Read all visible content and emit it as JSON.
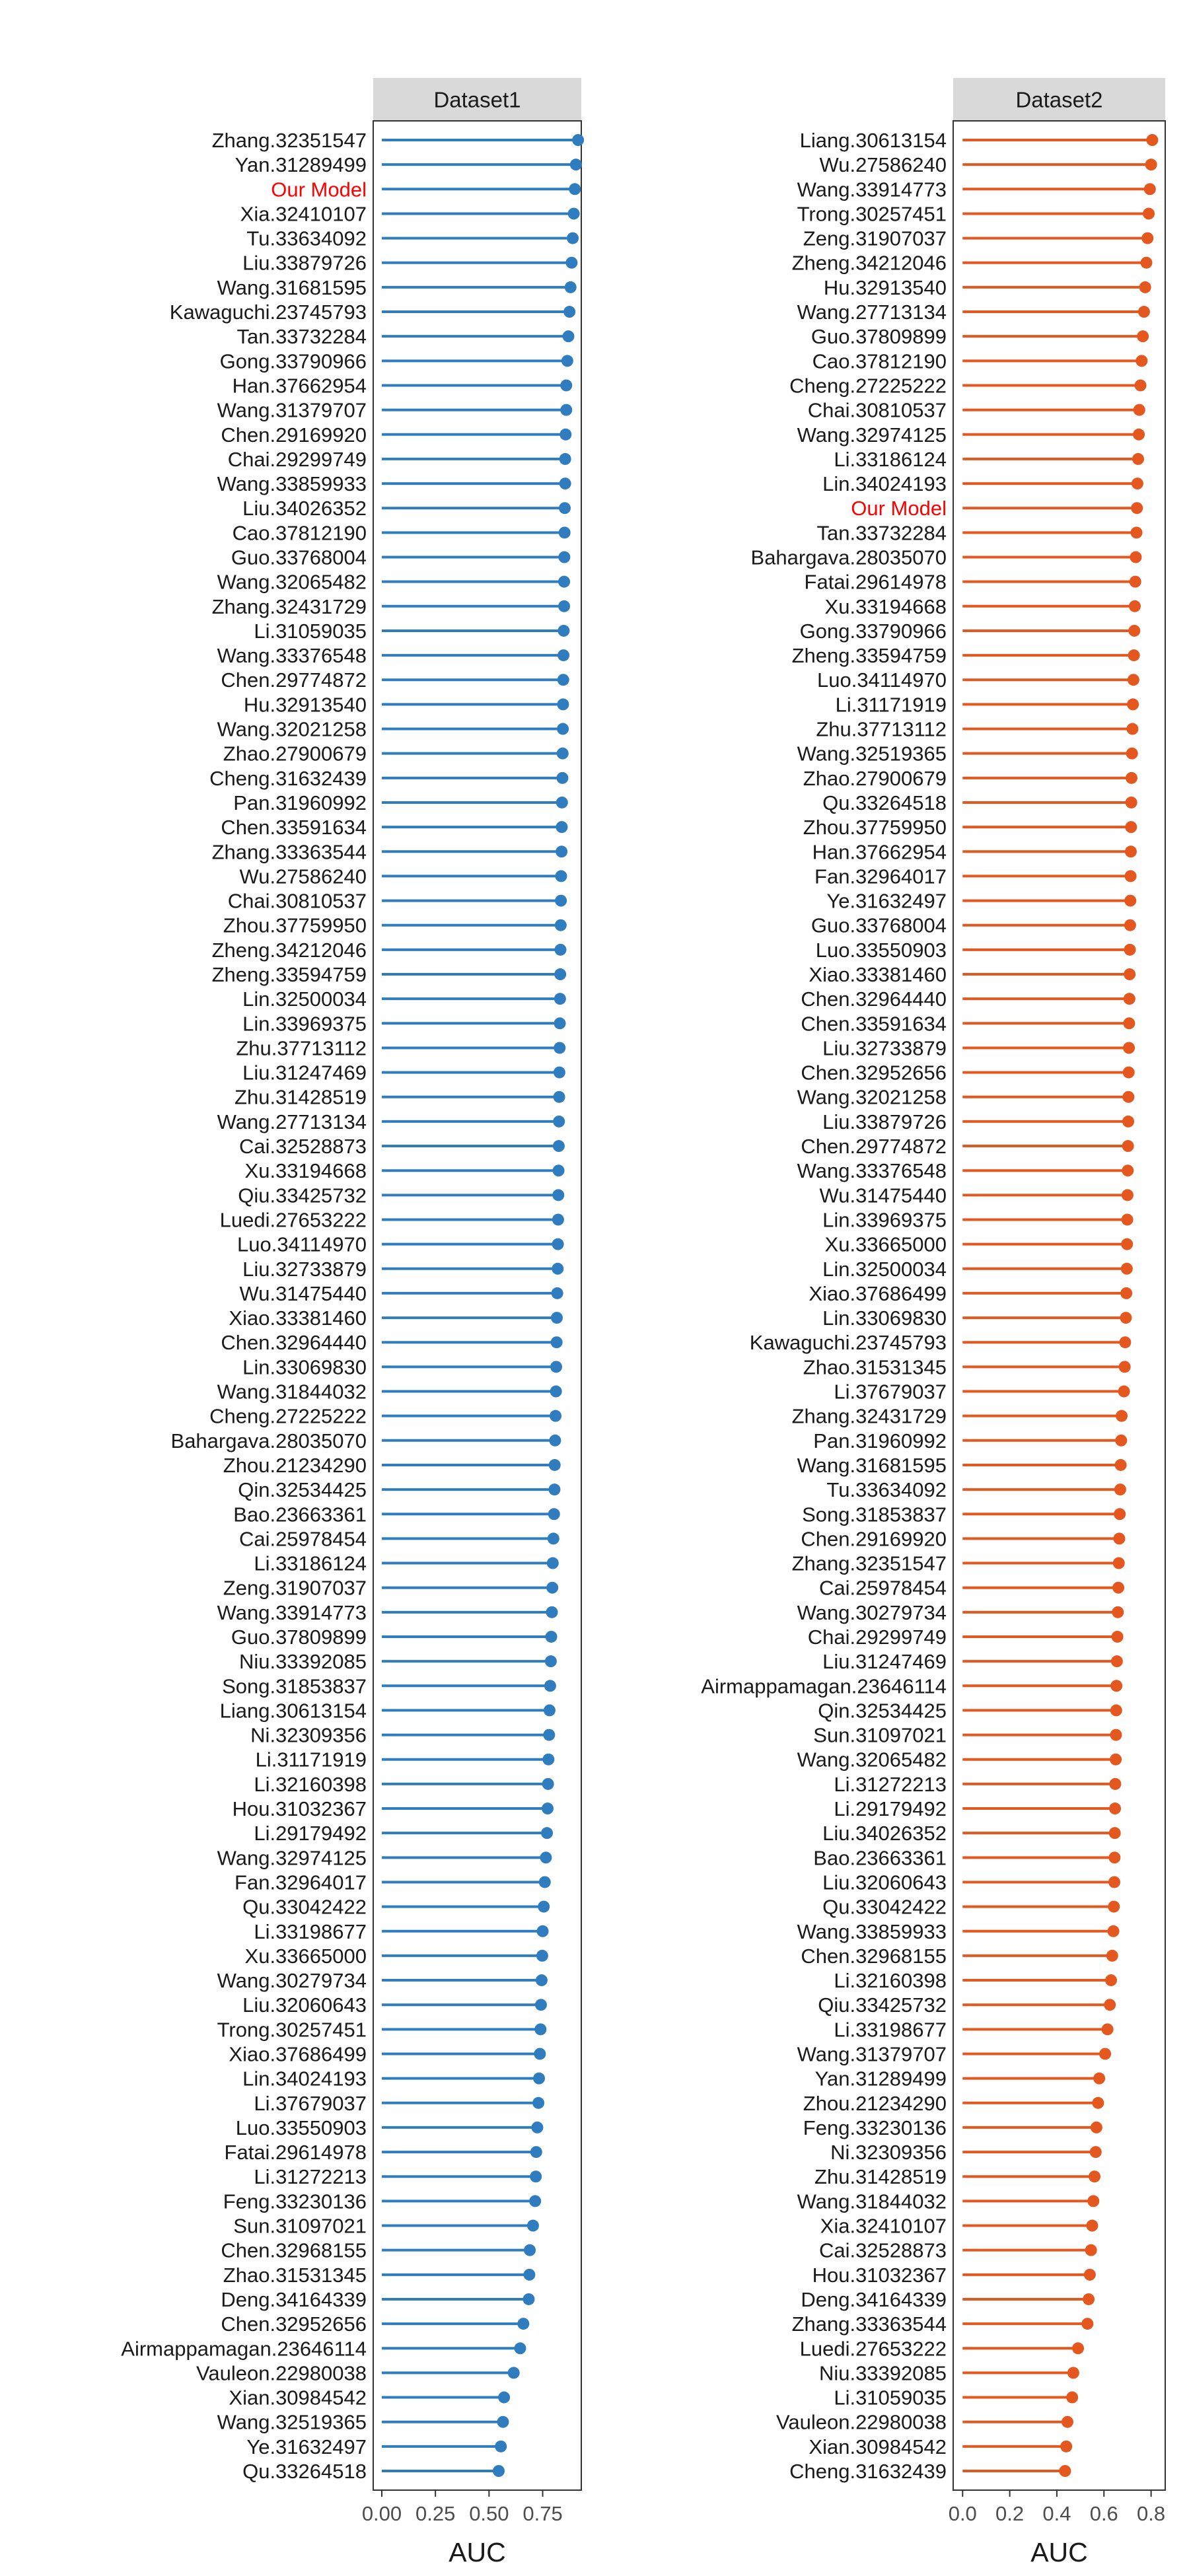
{
  "chart_data": [
    {
      "type": "lollipop",
      "panel_title": "Dataset1",
      "xlabel": "AUC",
      "xlim": [
        -0.04,
        0.93
      ],
      "xticks": [
        0.0,
        0.25,
        0.5,
        0.75
      ],
      "xtick_labels": [
        "0.00",
        "0.25",
        "0.50",
        "0.75"
      ],
      "color": "#2F7DBF",
      "highlight_color": "#FF0000",
      "highlight_label": "Our Model",
      "items": [
        {
          "label": "Zhang.32351547",
          "value": 0.915
        },
        {
          "label": "Yan.31289499",
          "value": 0.905
        },
        {
          "label": "Our Model",
          "value": 0.9
        },
        {
          "label": "Xia.32410107",
          "value": 0.895
        },
        {
          "label": "Tu.33634092",
          "value": 0.89
        },
        {
          "label": "Liu.33879726",
          "value": 0.885
        },
        {
          "label": "Wang.31681595",
          "value": 0.88
        },
        {
          "label": "Kawaguchi.23745793",
          "value": 0.875
        },
        {
          "label": "Tan.33732284",
          "value": 0.87
        },
        {
          "label": "Gong.33790966",
          "value": 0.865
        },
        {
          "label": "Han.37662954",
          "value": 0.86
        },
        {
          "label": "Wang.31379707",
          "value": 0.86
        },
        {
          "label": "Chen.29169920",
          "value": 0.857
        },
        {
          "label": "Chai.29299749",
          "value": 0.855
        },
        {
          "label": "Wang.33859933",
          "value": 0.855
        },
        {
          "label": "Liu.34026352",
          "value": 0.853
        },
        {
          "label": "Cao.37812190",
          "value": 0.852
        },
        {
          "label": "Guo.33768004",
          "value": 0.851
        },
        {
          "label": "Wang.32065482",
          "value": 0.85
        },
        {
          "label": "Zhang.32431729",
          "value": 0.85
        },
        {
          "label": "Li.31059035",
          "value": 0.848
        },
        {
          "label": "Wang.33376548",
          "value": 0.847
        },
        {
          "label": "Chen.29774872",
          "value": 0.846
        },
        {
          "label": "Hu.32913540",
          "value": 0.845
        },
        {
          "label": "Wang.32021258",
          "value": 0.844
        },
        {
          "label": "Zhao.27900679",
          "value": 0.843
        },
        {
          "label": "Cheng.31632439",
          "value": 0.842
        },
        {
          "label": "Pan.31960992",
          "value": 0.84
        },
        {
          "label": "Chen.33591634",
          "value": 0.839
        },
        {
          "label": "Zhang.33363544",
          "value": 0.838
        },
        {
          "label": "Wu.27586240",
          "value": 0.836
        },
        {
          "label": "Chai.30810537",
          "value": 0.835
        },
        {
          "label": "Zhou.37759950",
          "value": 0.834
        },
        {
          "label": "Zheng.34212046",
          "value": 0.833
        },
        {
          "label": "Zheng.33594759",
          "value": 0.832
        },
        {
          "label": "Lin.32500034",
          "value": 0.831
        },
        {
          "label": "Lin.33969375",
          "value": 0.83
        },
        {
          "label": "Zhu.37713112",
          "value": 0.829
        },
        {
          "label": "Liu.31247469",
          "value": 0.828
        },
        {
          "label": "Zhu.31428519",
          "value": 0.827
        },
        {
          "label": "Wang.27713134",
          "value": 0.826
        },
        {
          "label": "Cai.32528873",
          "value": 0.825
        },
        {
          "label": "Xu.33194668",
          "value": 0.824
        },
        {
          "label": "Qiu.33425732",
          "value": 0.823
        },
        {
          "label": "Luedi.27653222",
          "value": 0.822
        },
        {
          "label": "Luo.34114970",
          "value": 0.821
        },
        {
          "label": "Liu.32733879",
          "value": 0.82
        },
        {
          "label": "Wu.31475440",
          "value": 0.818
        },
        {
          "label": "Xiao.33381460",
          "value": 0.816
        },
        {
          "label": "Chen.32964440",
          "value": 0.815
        },
        {
          "label": "Lin.33069830",
          "value": 0.813
        },
        {
          "label": "Wang.31844032",
          "value": 0.812
        },
        {
          "label": "Cheng.27225222",
          "value": 0.81
        },
        {
          "label": "Bahargava.28035070",
          "value": 0.808
        },
        {
          "label": "Zhou.21234290",
          "value": 0.806
        },
        {
          "label": "Qin.32534425",
          "value": 0.805
        },
        {
          "label": "Bao.23663361",
          "value": 0.803
        },
        {
          "label": "Cai.25978454",
          "value": 0.8
        },
        {
          "label": "Li.33186124",
          "value": 0.797
        },
        {
          "label": "Zeng.31907037",
          "value": 0.795
        },
        {
          "label": "Wang.33914773",
          "value": 0.793
        },
        {
          "label": "Guo.37809899",
          "value": 0.79
        },
        {
          "label": "Niu.33392085",
          "value": 0.788
        },
        {
          "label": "Song.31853837",
          "value": 0.785
        },
        {
          "label": "Liang.30613154",
          "value": 0.782
        },
        {
          "label": "Ni.32309356",
          "value": 0.78
        },
        {
          "label": "Li.31171919",
          "value": 0.777
        },
        {
          "label": "Li.32160398",
          "value": 0.775
        },
        {
          "label": "Hou.31032367",
          "value": 0.773
        },
        {
          "label": "Li.29179492",
          "value": 0.77
        },
        {
          "label": "Wang.32974125",
          "value": 0.765
        },
        {
          "label": "Fan.32964017",
          "value": 0.76
        },
        {
          "label": "Qu.33042422",
          "value": 0.755
        },
        {
          "label": "Li.33198677",
          "value": 0.75
        },
        {
          "label": "Xu.33665000",
          "value": 0.748
        },
        {
          "label": "Wang.30279734",
          "value": 0.745
        },
        {
          "label": "Liu.32060643",
          "value": 0.742
        },
        {
          "label": "Trong.30257451",
          "value": 0.74
        },
        {
          "label": "Xiao.37686499",
          "value": 0.737
        },
        {
          "label": "Lin.34024193",
          "value": 0.733
        },
        {
          "label": "Li.37679037",
          "value": 0.73
        },
        {
          "label": "Luo.33550903",
          "value": 0.725
        },
        {
          "label": "Fatai.29614978",
          "value": 0.72
        },
        {
          "label": "Li.31272213",
          "value": 0.718
        },
        {
          "label": "Feng.33230136",
          "value": 0.715
        },
        {
          "label": "Sun.31097021",
          "value": 0.705
        },
        {
          "label": "Chen.32968155",
          "value": 0.69
        },
        {
          "label": "Zhao.31531345",
          "value": 0.688
        },
        {
          "label": "Deng.34164339",
          "value": 0.685
        },
        {
          "label": "Chen.32952656",
          "value": 0.66
        },
        {
          "label": "Airmappamagan.23646114",
          "value": 0.645
        },
        {
          "label": "Vauleon.22980038",
          "value": 0.615
        },
        {
          "label": "Xian.30984542",
          "value": 0.57
        },
        {
          "label": "Wang.32519365",
          "value": 0.565
        },
        {
          "label": "Ye.31632497",
          "value": 0.555
        },
        {
          "label": "Qu.33264518",
          "value": 0.545
        }
      ]
    },
    {
      "type": "lollipop",
      "panel_title": "Dataset2",
      "xlabel": "AUC",
      "xlim": [
        -0.04,
        0.86
      ],
      "xticks": [
        0.0,
        0.2,
        0.4,
        0.6,
        0.8
      ],
      "xtick_labels": [
        "0.0",
        "0.2",
        "0.4",
        "0.6",
        "0.8"
      ],
      "color": "#E4571E",
      "highlight_color": "#FF0000",
      "highlight_label": "Our Model",
      "items": [
        {
          "label": "Liang.30613154",
          "value": 0.805
        },
        {
          "label": "Wu.27586240",
          "value": 0.8
        },
        {
          "label": "Wang.33914773",
          "value": 0.795
        },
        {
          "label": "Trong.30257451",
          "value": 0.79
        },
        {
          "label": "Zeng.31907037",
          "value": 0.785
        },
        {
          "label": "Zheng.34212046",
          "value": 0.78
        },
        {
          "label": "Hu.32913540",
          "value": 0.775
        },
        {
          "label": "Wang.27713134",
          "value": 0.77
        },
        {
          "label": "Guo.37809899",
          "value": 0.765
        },
        {
          "label": "Cao.37812190",
          "value": 0.76
        },
        {
          "label": "Cheng.27225222",
          "value": 0.755
        },
        {
          "label": "Chai.30810537",
          "value": 0.75
        },
        {
          "label": "Wang.32974125",
          "value": 0.748
        },
        {
          "label": "Li.33186124",
          "value": 0.745
        },
        {
          "label": "Lin.34024193",
          "value": 0.742
        },
        {
          "label": "Our Model",
          "value": 0.74
        },
        {
          "label": "Tan.33732284",
          "value": 0.738
        },
        {
          "label": "Bahargava.28035070",
          "value": 0.735
        },
        {
          "label": "Fatai.29614978",
          "value": 0.733
        },
        {
          "label": "Xu.33194668",
          "value": 0.731
        },
        {
          "label": "Gong.33790966",
          "value": 0.729
        },
        {
          "label": "Zheng.33594759",
          "value": 0.727
        },
        {
          "label": "Luo.34114970",
          "value": 0.725
        },
        {
          "label": "Li.31171919",
          "value": 0.723
        },
        {
          "label": "Zhu.37713112",
          "value": 0.721
        },
        {
          "label": "Wang.32519365",
          "value": 0.719
        },
        {
          "label": "Zhao.27900679",
          "value": 0.717
        },
        {
          "label": "Qu.33264518",
          "value": 0.716
        },
        {
          "label": "Zhou.37759950",
          "value": 0.715
        },
        {
          "label": "Han.37662954",
          "value": 0.714
        },
        {
          "label": "Fan.32964017",
          "value": 0.713
        },
        {
          "label": "Ye.31632497",
          "value": 0.712
        },
        {
          "label": "Guo.33768004",
          "value": 0.711
        },
        {
          "label": "Luo.33550903",
          "value": 0.71
        },
        {
          "label": "Xiao.33381460",
          "value": 0.709
        },
        {
          "label": "Chen.32964440",
          "value": 0.708
        },
        {
          "label": "Chen.33591634",
          "value": 0.707
        },
        {
          "label": "Liu.32733879",
          "value": 0.706
        },
        {
          "label": "Chen.32952656",
          "value": 0.705
        },
        {
          "label": "Wang.32021258",
          "value": 0.704
        },
        {
          "label": "Liu.33879726",
          "value": 0.703
        },
        {
          "label": "Chen.29774872",
          "value": 0.702
        },
        {
          "label": "Wang.33376548",
          "value": 0.701
        },
        {
          "label": "Wu.31475440",
          "value": 0.7
        },
        {
          "label": "Lin.33969375",
          "value": 0.699
        },
        {
          "label": "Xu.33665000",
          "value": 0.698
        },
        {
          "label": "Lin.32500034",
          "value": 0.697
        },
        {
          "label": "Xiao.37686499",
          "value": 0.695
        },
        {
          "label": "Lin.33069830",
          "value": 0.693
        },
        {
          "label": "Kawaguchi.23745793",
          "value": 0.69
        },
        {
          "label": "Zhao.31531345",
          "value": 0.688
        },
        {
          "label": "Li.37679037",
          "value": 0.685
        },
        {
          "label": "Zhang.32431729",
          "value": 0.675
        },
        {
          "label": "Pan.31960992",
          "value": 0.673
        },
        {
          "label": "Wang.31681595",
          "value": 0.671
        },
        {
          "label": "Tu.33634092",
          "value": 0.669
        },
        {
          "label": "Song.31853837",
          "value": 0.667
        },
        {
          "label": "Chen.29169920",
          "value": 0.665
        },
        {
          "label": "Zhang.32351547",
          "value": 0.663
        },
        {
          "label": "Cai.25978454",
          "value": 0.661
        },
        {
          "label": "Wang.30279734",
          "value": 0.659
        },
        {
          "label": "Chai.29299749",
          "value": 0.657
        },
        {
          "label": "Liu.31247469",
          "value": 0.655
        },
        {
          "label": "Airmappamagan.23646114",
          "value": 0.653
        },
        {
          "label": "Qin.32534425",
          "value": 0.652
        },
        {
          "label": "Sun.31097021",
          "value": 0.651
        },
        {
          "label": "Wang.32065482",
          "value": 0.65
        },
        {
          "label": "Li.31272213",
          "value": 0.648
        },
        {
          "label": "Li.29179492",
          "value": 0.647
        },
        {
          "label": "Liu.34026352",
          "value": 0.646
        },
        {
          "label": "Bao.23663361",
          "value": 0.645
        },
        {
          "label": "Liu.32060643",
          "value": 0.644
        },
        {
          "label": "Qu.33042422",
          "value": 0.642
        },
        {
          "label": "Wang.33859933",
          "value": 0.64
        },
        {
          "label": "Chen.32968155",
          "value": 0.635
        },
        {
          "label": "Li.32160398",
          "value": 0.63
        },
        {
          "label": "Qiu.33425732",
          "value": 0.625
        },
        {
          "label": "Li.33198677",
          "value": 0.615
        },
        {
          "label": "Wang.31379707",
          "value": 0.605
        },
        {
          "label": "Yan.31289499",
          "value": 0.58
        },
        {
          "label": "Zhou.21234290",
          "value": 0.575
        },
        {
          "label": "Feng.33230136",
          "value": 0.568
        },
        {
          "label": "Ni.32309356",
          "value": 0.565
        },
        {
          "label": "Zhu.31428519",
          "value": 0.56
        },
        {
          "label": "Wang.31844032",
          "value": 0.555
        },
        {
          "label": "Xia.32410107",
          "value": 0.55
        },
        {
          "label": "Cai.32528873",
          "value": 0.545
        },
        {
          "label": "Hou.31032367",
          "value": 0.54
        },
        {
          "label": "Deng.34164339",
          "value": 0.535
        },
        {
          "label": "Zhang.33363544",
          "value": 0.53
        },
        {
          "label": "Luedi.27653222",
          "value": 0.49
        },
        {
          "label": "Niu.33392085",
          "value": 0.47
        },
        {
          "label": "Li.31059035",
          "value": 0.465
        },
        {
          "label": "Vauleon.22980038",
          "value": 0.445
        },
        {
          "label": "Xian.30984542",
          "value": 0.44
        },
        {
          "label": "Cheng.31632439",
          "value": 0.435
        }
      ]
    }
  ]
}
